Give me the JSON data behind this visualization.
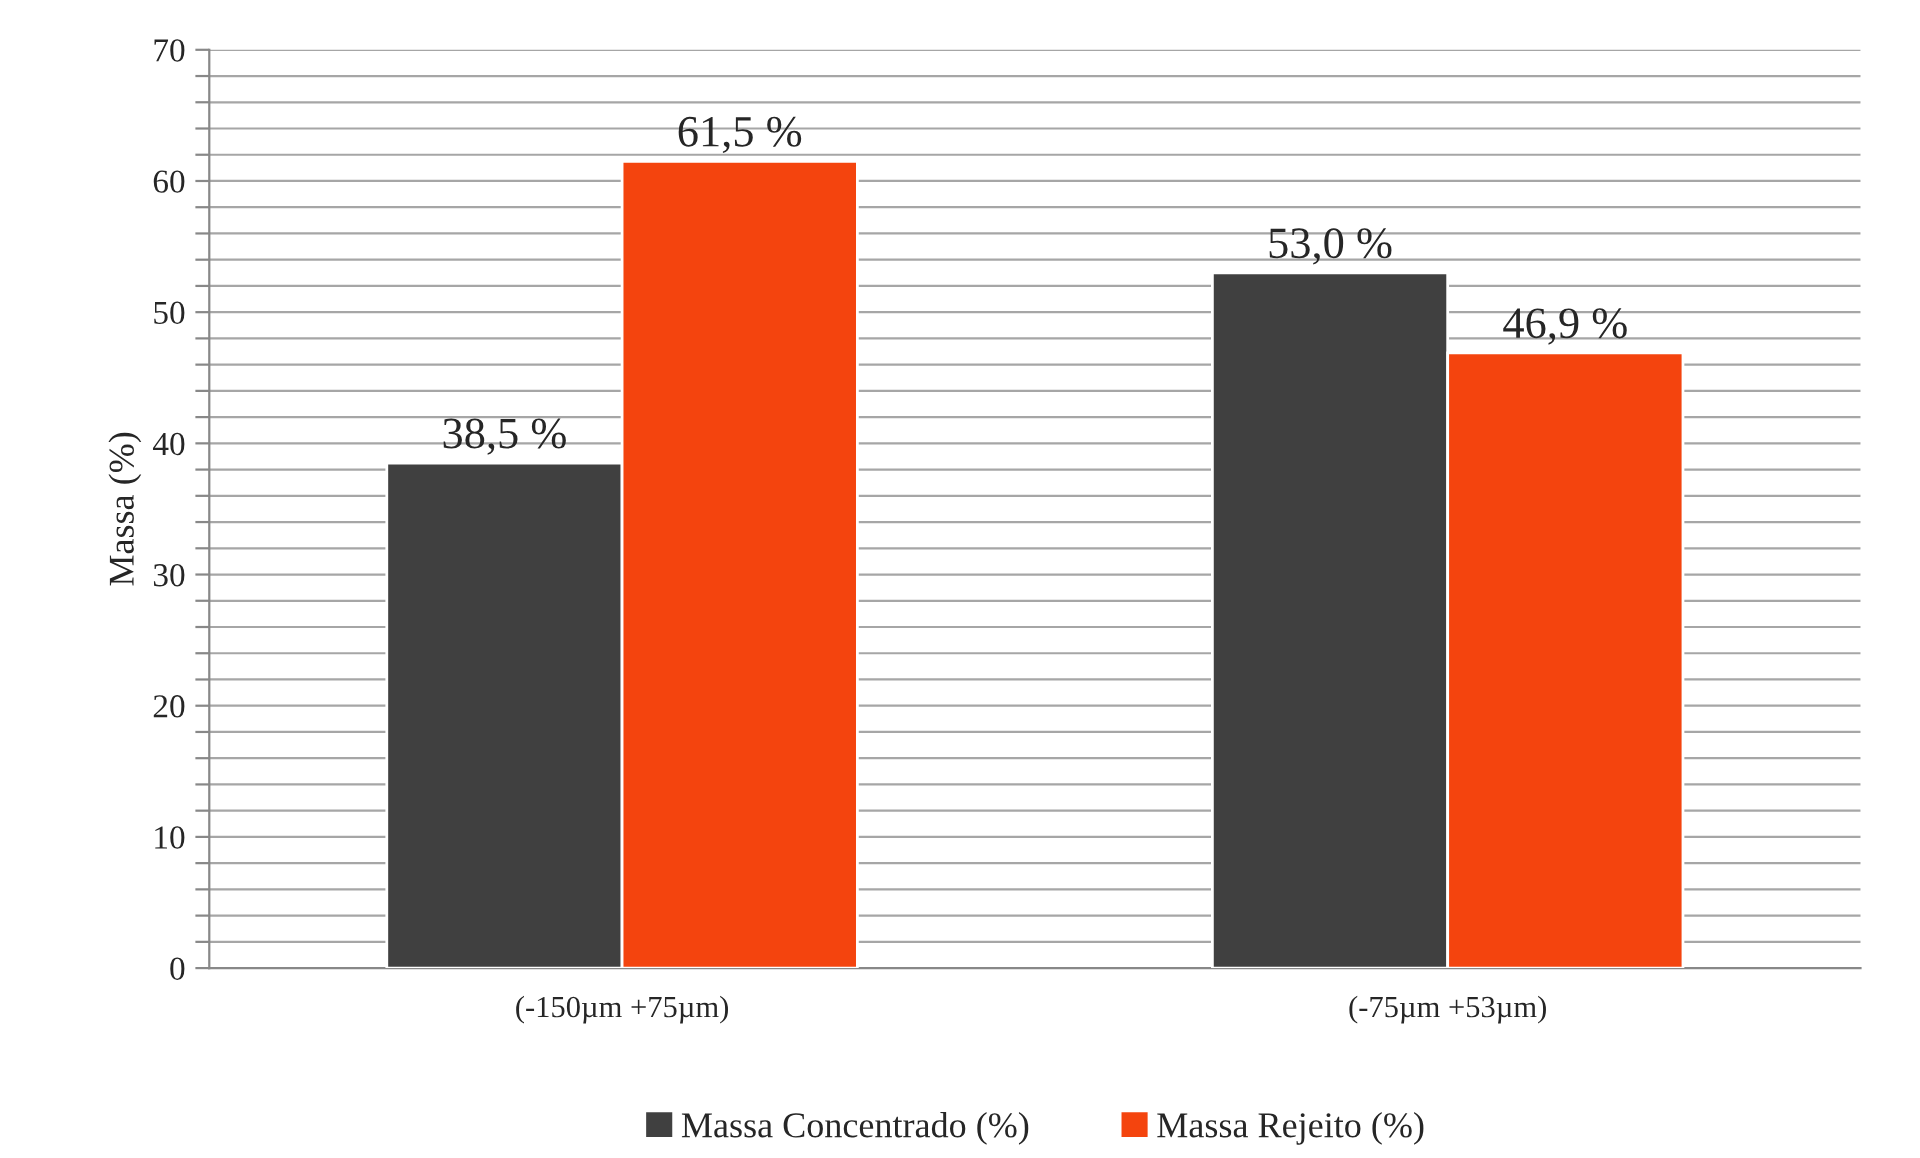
{
  "chart_data": {
    "type": "bar",
    "ylabel": "Massa (%)",
    "categories": [
      "(-150µm +75µm)",
      "(-75µm +53µm)"
    ],
    "series": [
      {
        "name": "Massa Concentrado (%)",
        "color": "#404040",
        "values": [
          38.5,
          53.0
        ],
        "value_labels": [
          "38,5 %",
          "53,0 %"
        ]
      },
      {
        "name": "Massa Rejeito (%)",
        "color": "#f4440e",
        "values": [
          61.5,
          46.9
        ],
        "value_labels": [
          "61,5 %",
          "46,9 %"
        ]
      }
    ],
    "ylim": [
      0,
      70
    ],
    "yticks": [
      0,
      {
        "value": 2,
        "label": null
      },
      {
        "value": 4,
        "label": null
      },
      {
        "value": 6,
        "label": null
      },
      {
        "value": 8,
        "label": null
      },
      10,
      {
        "value": 12,
        "label": null
      },
      {
        "value": 14,
        "label": null
      },
      {
        "value": 16,
        "label": null
      },
      {
        "value": 18,
        "label": null
      },
      20,
      {
        "value": 22,
        "label": null
      },
      {
        "value": 24,
        "label": null
      },
      {
        "value": 26,
        "label": null
      },
      {
        "value": 28,
        "label": null
      },
      30,
      {
        "value": 32,
        "label": null
      },
      {
        "value": 34,
        "label": null
      },
      {
        "value": 36,
        "label": null
      },
      {
        "value": 38,
        "label": null
      },
      40,
      {
        "value": 42,
        "label": null
      },
      {
        "value": 44,
        "label": null
      },
      {
        "value": 46,
        "label": null
      },
      {
        "value": 48,
        "label": null
      },
      50,
      {
        "value": 52,
        "label": null
      },
      {
        "value": 54,
        "label": null
      },
      {
        "value": 56,
        "label": null
      },
      {
        "value": 58,
        "label": null
      },
      60,
      {
        "value": 62,
        "label": null
      },
      {
        "value": 64,
        "label": null
      },
      {
        "value": 66,
        "label": null
      },
      {
        "value": 68,
        "label": null
      },
      70
    ],
    "grid": "y",
    "legend": "bottom"
  }
}
